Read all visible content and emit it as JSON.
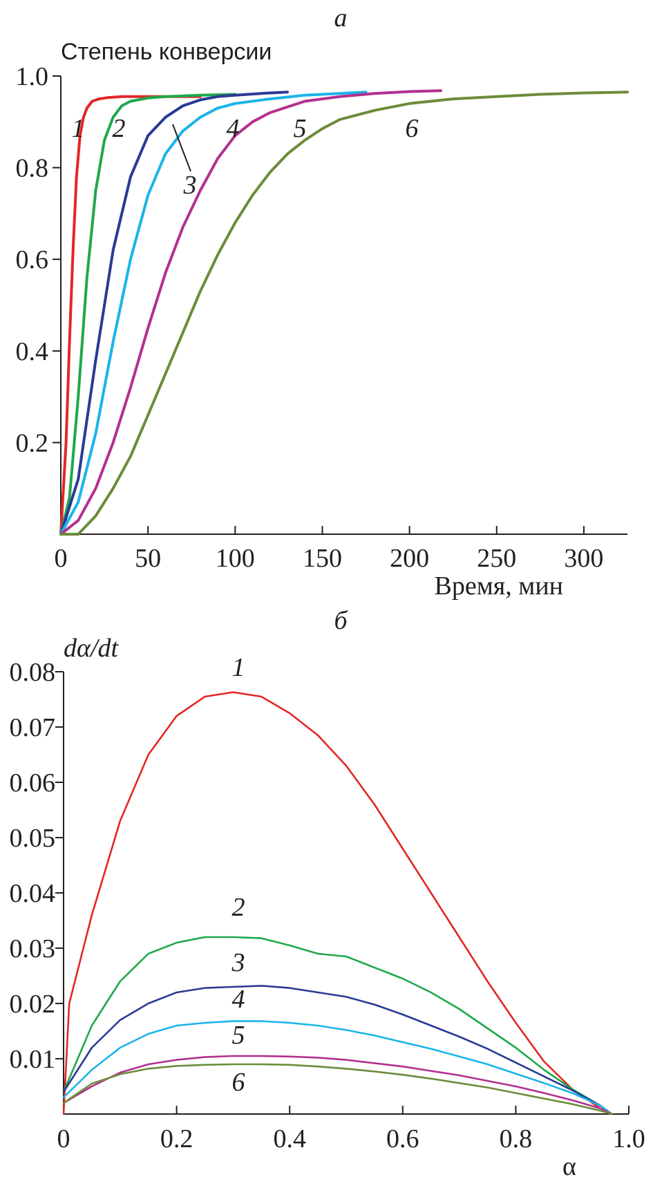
{
  "chart_data": [
    {
      "panel": "а",
      "type": "line",
      "ylabel": "Степень конверсии",
      "xlabel": "Время, мин",
      "xlim": [
        0,
        325
      ],
      "ylim": [
        0,
        1.0
      ],
      "x_ticks": [
        "0",
        "50",
        "100",
        "150",
        "200",
        "250",
        "300"
      ],
      "y_ticks": [
        "0.2",
        "0.4",
        "0.6",
        "0.8",
        "1.0"
      ],
      "grid": false,
      "series": [
        {
          "name": "1",
          "color": "#e32626",
          "x": [
            0,
            3,
            5,
            7,
            9,
            11,
            13,
            15,
            18,
            22,
            27,
            35,
            50,
            80
          ],
          "y": [
            0,
            0.2,
            0.42,
            0.62,
            0.78,
            0.87,
            0.91,
            0.93,
            0.945,
            0.95,
            0.953,
            0.955,
            0.955,
            0.955
          ]
        },
        {
          "name": "2",
          "color": "#1fa84a",
          "x": [
            0,
            5,
            10,
            15,
            20,
            25,
            30,
            35,
            40,
            50,
            60,
            80,
            100
          ],
          "y": [
            0,
            0.08,
            0.3,
            0.56,
            0.75,
            0.86,
            0.91,
            0.935,
            0.945,
            0.952,
            0.955,
            0.958,
            0.96
          ]
        },
        {
          "name": "3",
          "color": "#2a3a95",
          "x": [
            0,
            10,
            20,
            30,
            40,
            50,
            60,
            70,
            80,
            90,
            100,
            115,
            130
          ],
          "y": [
            0,
            0.12,
            0.38,
            0.62,
            0.78,
            0.87,
            0.91,
            0.935,
            0.948,
            0.955,
            0.958,
            0.962,
            0.965
          ]
        },
        {
          "name": "4",
          "color": "#1ab4e8",
          "x": [
            0,
            10,
            20,
            30,
            40,
            50,
            60,
            70,
            80,
            90,
            100,
            120,
            140,
            160,
            175
          ],
          "y": [
            0,
            0.07,
            0.22,
            0.42,
            0.6,
            0.74,
            0.83,
            0.88,
            0.91,
            0.93,
            0.94,
            0.95,
            0.958,
            0.962,
            0.965
          ]
        },
        {
          "name": "5",
          "color": "#b3308f",
          "x": [
            0,
            10,
            20,
            30,
            40,
            50,
            60,
            70,
            80,
            90,
            100,
            110,
            120,
            140,
            160,
            180,
            200,
            218
          ],
          "y": [
            0,
            0.03,
            0.1,
            0.2,
            0.32,
            0.45,
            0.57,
            0.67,
            0.75,
            0.82,
            0.87,
            0.9,
            0.92,
            0.945,
            0.955,
            0.962,
            0.966,
            0.968
          ]
        },
        {
          "name": "6",
          "color": "#6b8c3a",
          "x": [
            0,
            10,
            20,
            30,
            40,
            50,
            60,
            70,
            80,
            90,
            100,
            110,
            120,
            130,
            140,
            150,
            160,
            180,
            200,
            225,
            250,
            275,
            300,
            325
          ],
          "y": [
            0,
            0,
            0.04,
            0.1,
            0.17,
            0.26,
            0.35,
            0.44,
            0.53,
            0.61,
            0.68,
            0.74,
            0.79,
            0.83,
            0.86,
            0.885,
            0.905,
            0.925,
            0.94,
            0.95,
            0.955,
            0.96,
            0.963,
            0.965
          ]
        }
      ]
    },
    {
      "panel": "б",
      "type": "line",
      "ylabel": "dα/dt",
      "xlabel": "α",
      "xlim": [
        0,
        1.0
      ],
      "ylim": [
        0,
        0.08
      ],
      "x_ticks": [
        "0",
        "0.2",
        "0.4",
        "0.6",
        "0.8",
        "1.0"
      ],
      "y_ticks": [
        "0.01",
        "0.02",
        "0.03",
        "0.04",
        "0.05",
        "0.06",
        "0.07",
        "0.08"
      ],
      "grid": false,
      "series": [
        {
          "name": "1",
          "color": "#e32626",
          "x": [
            0,
            0.01,
            0.05,
            0.1,
            0.15,
            0.2,
            0.25,
            0.3,
            0.35,
            0.4,
            0.45,
            0.5,
            0.55,
            0.6,
            0.65,
            0.7,
            0.75,
            0.8,
            0.85,
            0.9,
            0.95,
            0.97
          ],
          "y": [
            0,
            0.02,
            0.036,
            0.053,
            0.065,
            0.072,
            0.0755,
            0.0763,
            0.0755,
            0.0725,
            0.0685,
            0.063,
            0.056,
            0.048,
            0.04,
            0.032,
            0.024,
            0.0165,
            0.0095,
            0.0045,
            0.001,
            0
          ]
        },
        {
          "name": "2",
          "color": "#1fa84a",
          "x": [
            0,
            0.05,
            0.1,
            0.15,
            0.2,
            0.25,
            0.3,
            0.35,
            0.4,
            0.45,
            0.5,
            0.55,
            0.6,
            0.65,
            0.7,
            0.75,
            0.8,
            0.85,
            0.9,
            0.95,
            0.97
          ],
          "y": [
            0.004,
            0.016,
            0.024,
            0.029,
            0.031,
            0.032,
            0.032,
            0.0318,
            0.0305,
            0.029,
            0.0285,
            0.0265,
            0.0245,
            0.022,
            0.019,
            0.0155,
            0.012,
            0.008,
            0.0045,
            0.0015,
            0
          ]
        },
        {
          "name": "3",
          "color": "#2a3a95",
          "x": [
            0,
            0.05,
            0.1,
            0.15,
            0.2,
            0.25,
            0.3,
            0.35,
            0.4,
            0.45,
            0.5,
            0.55,
            0.6,
            0.65,
            0.7,
            0.75,
            0.8,
            0.85,
            0.9,
            0.95,
            0.97
          ],
          "y": [
            0.004,
            0.012,
            0.017,
            0.02,
            0.022,
            0.0228,
            0.023,
            0.0232,
            0.0228,
            0.022,
            0.0212,
            0.0198,
            0.018,
            0.016,
            0.014,
            0.0118,
            0.0093,
            0.0068,
            0.0043,
            0.0015,
            0
          ]
        },
        {
          "name": "4",
          "color": "#1ab4e8",
          "x": [
            0,
            0.05,
            0.1,
            0.15,
            0.2,
            0.25,
            0.3,
            0.35,
            0.4,
            0.45,
            0.5,
            0.55,
            0.6,
            0.65,
            0.7,
            0.75,
            0.8,
            0.85,
            0.9,
            0.95,
            0.97
          ],
          "y": [
            0.003,
            0.008,
            0.012,
            0.0145,
            0.016,
            0.0165,
            0.0168,
            0.0168,
            0.0165,
            0.016,
            0.0152,
            0.0142,
            0.013,
            0.0118,
            0.0104,
            0.009,
            0.0073,
            0.0056,
            0.0038,
            0.0015,
            0
          ]
        },
        {
          "name": "5",
          "color": "#b3308f",
          "x": [
            0,
            0.05,
            0.1,
            0.15,
            0.2,
            0.25,
            0.3,
            0.35,
            0.4,
            0.45,
            0.5,
            0.55,
            0.6,
            0.65,
            0.7,
            0.75,
            0.8,
            0.85,
            0.9,
            0.95,
            0.97
          ],
          "y": [
            0.002,
            0.005,
            0.0075,
            0.009,
            0.0098,
            0.0103,
            0.0105,
            0.0105,
            0.0104,
            0.0102,
            0.0098,
            0.0092,
            0.0086,
            0.0078,
            0.007,
            0.006,
            0.005,
            0.0038,
            0.0025,
            0.001,
            0
          ]
        },
        {
          "name": "6",
          "color": "#6b8c3a",
          "x": [
            0,
            0.05,
            0.1,
            0.15,
            0.2,
            0.25,
            0.3,
            0.35,
            0.4,
            0.45,
            0.5,
            0.55,
            0.6,
            0.65,
            0.7,
            0.75,
            0.8,
            0.85,
            0.9,
            0.95,
            0.97
          ],
          "y": [
            0.002,
            0.0055,
            0.0072,
            0.0082,
            0.0087,
            0.0089,
            0.009,
            0.009,
            0.0089,
            0.0086,
            0.0082,
            0.0077,
            0.0071,
            0.0064,
            0.0056,
            0.0048,
            0.0038,
            0.0028,
            0.0018,
            0.0006,
            0
          ]
        }
      ]
    }
  ]
}
